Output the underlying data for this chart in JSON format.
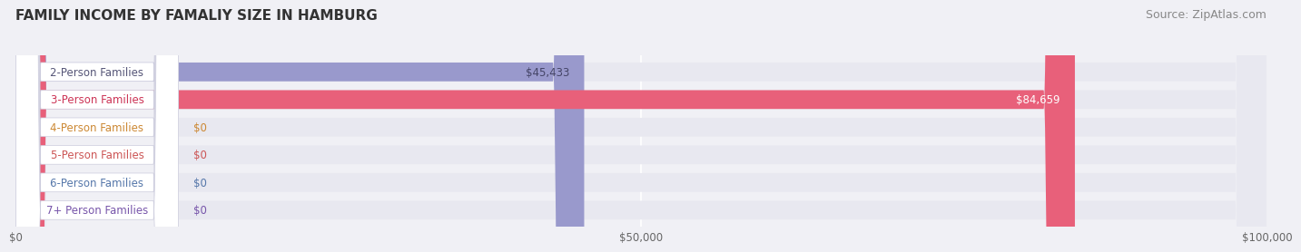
{
  "title": "FAMILY INCOME BY FAMALIY SIZE IN HAMBURG",
  "source": "Source: ZipAtlas.com",
  "categories": [
    "2-Person Families",
    "3-Person Families",
    "4-Person Families",
    "5-Person Families",
    "6-Person Families",
    "7+ Person Families"
  ],
  "values": [
    45433,
    84659,
    0,
    0,
    0,
    0
  ],
  "bar_colors": [
    "#9999cc",
    "#e8607a",
    "#f5c99a",
    "#f0a0a0",
    "#a0b8d8",
    "#c0b0d0"
  ],
  "label_colors": [
    "#555577",
    "#cc3355",
    "#cc8833",
    "#cc5555",
    "#5577aa",
    "#7755aa"
  ],
  "value_labels": [
    "$45,433",
    "$84,659",
    "$0",
    "$0",
    "$0",
    "$0"
  ],
  "value_label_colors": [
    "#444466",
    "#ffffff",
    "#555577",
    "#555577",
    "#555577",
    "#555577"
  ],
  "xlim": [
    0,
    100000
  ],
  "xticks": [
    0,
    50000,
    100000
  ],
  "xtick_labels": [
    "$0",
    "$50,000",
    "$100,000"
  ],
  "background_color": "#f0f0f5",
  "bar_background_color": "#e8e8f0",
  "title_fontsize": 11,
  "source_fontsize": 9,
  "label_fontsize": 8.5,
  "value_fontsize": 8.5,
  "bar_height": 0.68
}
